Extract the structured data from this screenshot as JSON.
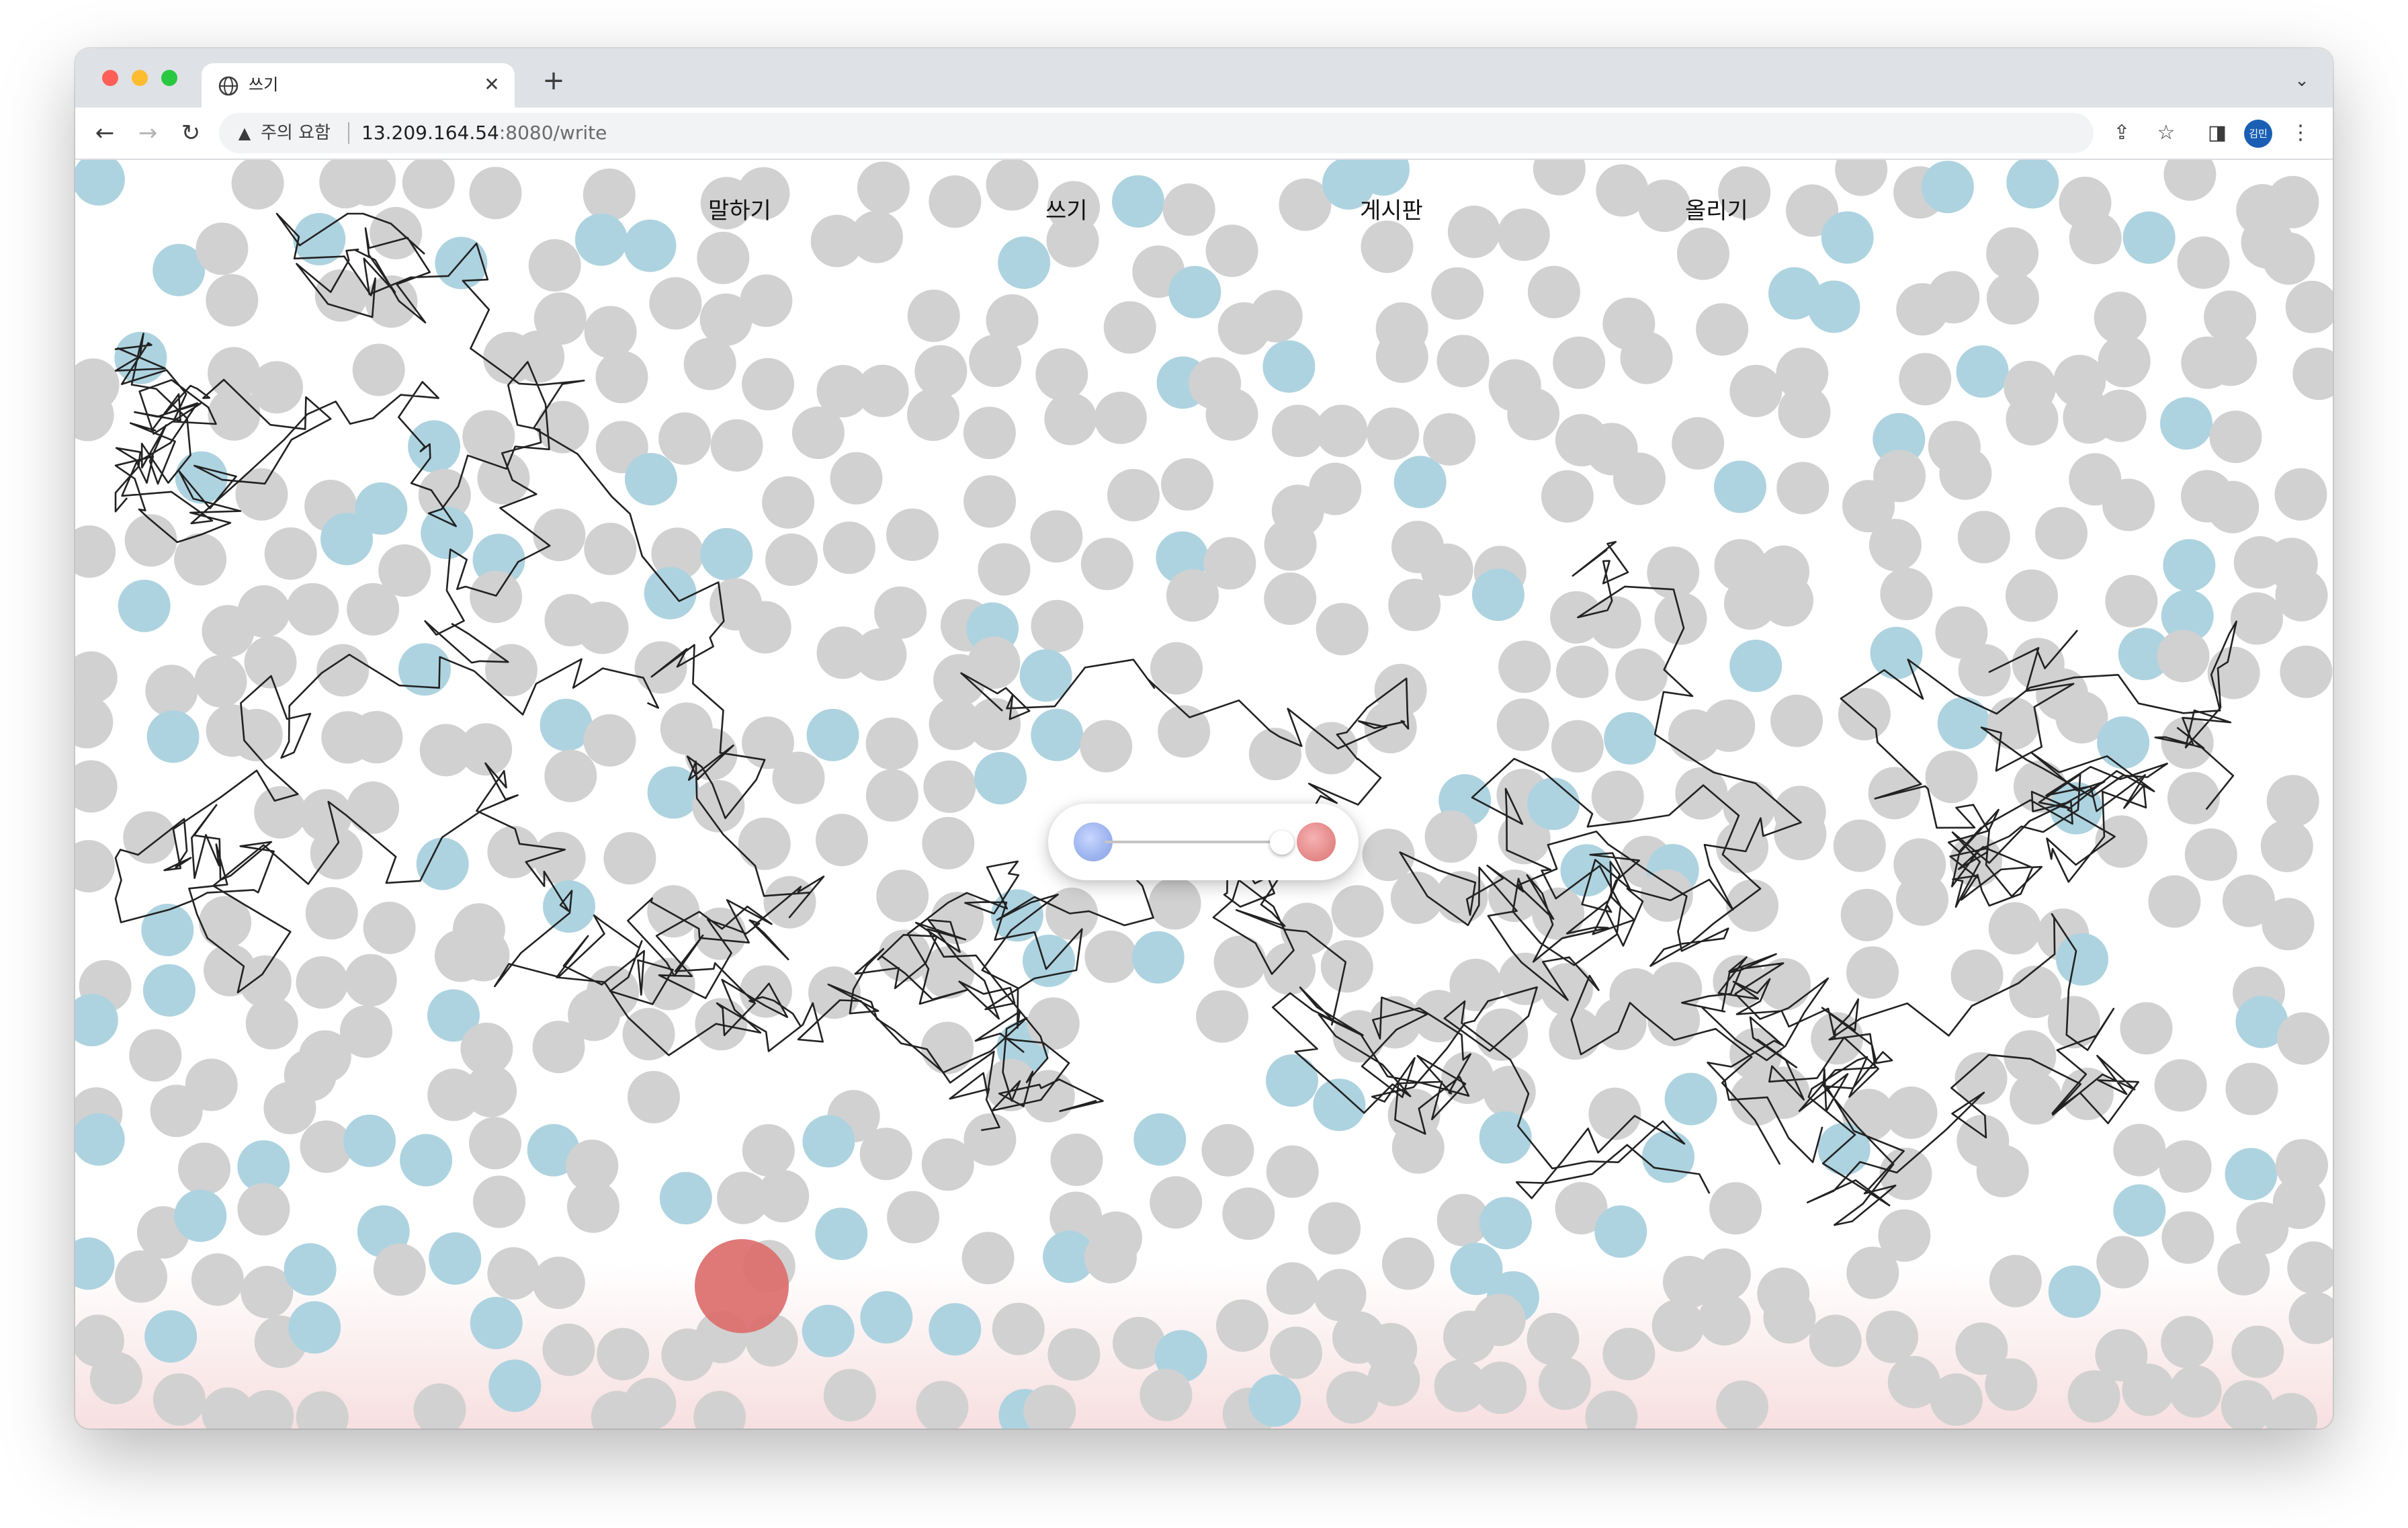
{
  "browser": {
    "tab_title": "쓰기",
    "security_label": "주의 요함",
    "url_host": "13.209.164.54",
    "url_rest": ":8080/write",
    "profile_initials": "김민"
  },
  "nav": {
    "speak": "말하기",
    "write": "쓰기",
    "board": "게시판",
    "upload": "올리기"
  },
  "colors": {
    "gray_dot": "#d1d1d1",
    "blue_dot": "#aed3e0",
    "red_dot": "#dc6e6c",
    "stroke": "#222222",
    "slider_left_knob": "#9cb3ee",
    "slider_right_knob": "#e58b8b"
  },
  "slider": {
    "value": 0.95
  },
  "icons": [
    "globe-icon",
    "close-icon",
    "plus-icon",
    "chevron-down-icon",
    "back-arrow-icon",
    "forward-arrow-icon",
    "reload-icon",
    "warning-icon",
    "share-icon",
    "star-icon",
    "sidebar-icon",
    "more-vert-icon"
  ]
}
